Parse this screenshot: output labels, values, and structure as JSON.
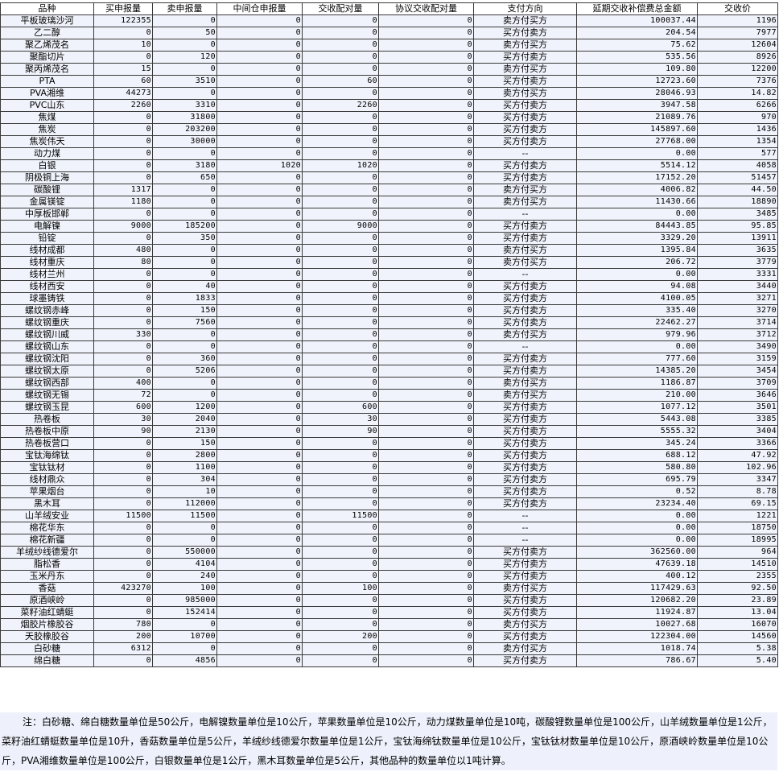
{
  "headers": [
    "品种",
    "买申报量",
    "卖申报量",
    "中间仓申报量",
    "交收配对量",
    "协议交收配对量",
    "支付方向",
    "延期交收补偿费总金额",
    "交收价"
  ],
  "rows": [
    [
      "平板玻璃沙河",
      "122355",
      "0",
      "0",
      "0",
      "0",
      "卖方付买方",
      "100037.44",
      "1196"
    ],
    [
      "乙二醇",
      "0",
      "50",
      "0",
      "0",
      "0",
      "买方付卖方",
      "204.54",
      "7977"
    ],
    [
      "聚乙烯茂名",
      "10",
      "0",
      "0",
      "0",
      "0",
      "卖方付买方",
      "75.62",
      "12604"
    ],
    [
      "聚酯切片",
      "0",
      "120",
      "0",
      "0",
      "0",
      "买方付卖方",
      "535.56",
      "8926"
    ],
    [
      "聚丙烯茂名",
      "15",
      "0",
      "0",
      "0",
      "0",
      "卖方付买方",
      "109.80",
      "12200"
    ],
    [
      "PTA",
      "60",
      "3510",
      "0",
      "60",
      "0",
      "买方付卖方",
      "12723.60",
      "7376"
    ],
    [
      "PVA湘维",
      "44273",
      "0",
      "0",
      "0",
      "0",
      "卖方付买方",
      "28046.93",
      "14.82"
    ],
    [
      "PVC山东",
      "2260",
      "3310",
      "0",
      "2260",
      "0",
      "买方付卖方",
      "3947.58",
      "6266"
    ],
    [
      "焦煤",
      "0",
      "31800",
      "0",
      "0",
      "0",
      "买方付卖方",
      "21089.76",
      "970"
    ],
    [
      "焦炭",
      "0",
      "203200",
      "0",
      "0",
      "0",
      "买方付卖方",
      "145897.60",
      "1436"
    ],
    [
      "焦炭伟天",
      "0",
      "30000",
      "0",
      "0",
      "0",
      "买方付卖方",
      "27768.00",
      "1354"
    ],
    [
      "动力煤",
      "0",
      "0",
      "0",
      "0",
      "0",
      "--",
      "0.00",
      "577"
    ],
    [
      "白银",
      "0",
      "3180",
      "1020",
      "1020",
      "0",
      "买方付卖方",
      "5514.12",
      "4058"
    ],
    [
      "阴极铜上海",
      "0",
      "650",
      "0",
      "0",
      "0",
      "买方付卖方",
      "17152.20",
      "51457"
    ],
    [
      "碳酸锂",
      "1317",
      "0",
      "0",
      "0",
      "0",
      "卖方付买方",
      "4006.82",
      "44.50"
    ],
    [
      "金属镁锭",
      "1180",
      "0",
      "0",
      "0",
      "0",
      "卖方付买方",
      "11430.66",
      "18890"
    ],
    [
      "中厚板邯郸",
      "0",
      "0",
      "0",
      "0",
      "0",
      "--",
      "0.00",
      "3485"
    ],
    [
      "电解镍",
      "9000",
      "185200",
      "0",
      "9000",
      "0",
      "买方付卖方",
      "84443.85",
      "95.85"
    ],
    [
      "铅锭",
      "0",
      "350",
      "0",
      "0",
      "0",
      "买方付卖方",
      "3329.20",
      "13911"
    ],
    [
      "线材成都",
      "480",
      "0",
      "0",
      "0",
      "0",
      "卖方付买方",
      "1395.84",
      "3635"
    ],
    [
      "线材重庆",
      "80",
      "0",
      "0",
      "0",
      "0",
      "卖方付买方",
      "206.72",
      "3779"
    ],
    [
      "线材兰州",
      "0",
      "0",
      "0",
      "0",
      "0",
      "--",
      "0.00",
      "3331"
    ],
    [
      "线材西安",
      "0",
      "40",
      "0",
      "0",
      "0",
      "买方付卖方",
      "94.08",
      "3440"
    ],
    [
      "球墨铸铁",
      "0",
      "1833",
      "0",
      "0",
      "0",
      "买方付卖方",
      "4100.05",
      "3271"
    ],
    [
      "螺纹钢赤峰",
      "0",
      "150",
      "0",
      "0",
      "0",
      "买方付卖方",
      "335.40",
      "3270"
    ],
    [
      "螺纹钢重庆",
      "0",
      "7560",
      "0",
      "0",
      "0",
      "买方付卖方",
      "22462.27",
      "3714"
    ],
    [
      "螺纹钢川威",
      "330",
      "0",
      "0",
      "0",
      "0",
      "卖方付买方",
      "979.96",
      "3712"
    ],
    [
      "螺纹钢山东",
      "0",
      "0",
      "0",
      "0",
      "0",
      "--",
      "0.00",
      "3490"
    ],
    [
      "螺纹钢沈阳",
      "0",
      "360",
      "0",
      "0",
      "0",
      "买方付卖方",
      "777.60",
      "3159"
    ],
    [
      "螺纹钢太原",
      "0",
      "5206",
      "0",
      "0",
      "0",
      "买方付卖方",
      "14385.20",
      "3454"
    ],
    [
      "螺纹钢西部",
      "400",
      "0",
      "0",
      "0",
      "0",
      "卖方付买方",
      "1186.87",
      "3709"
    ],
    [
      "螺纹钢无锡",
      "72",
      "0",
      "0",
      "0",
      "0",
      "卖方付买方",
      "210.00",
      "3646"
    ],
    [
      "螺纹钢玉昆",
      "600",
      "1200",
      "0",
      "600",
      "0",
      "买方付卖方",
      "1077.12",
      "3501"
    ],
    [
      "热卷板",
      "30",
      "2040",
      "0",
      "30",
      "0",
      "买方付卖方",
      "5443.08",
      "3385"
    ],
    [
      "热卷板中原",
      "90",
      "2130",
      "0",
      "90",
      "0",
      "买方付卖方",
      "5555.32",
      "3404"
    ],
    [
      "热卷板营口",
      "0",
      "150",
      "0",
      "0",
      "0",
      "买方付卖方",
      "345.24",
      "3366"
    ],
    [
      "宝钛海绵钛",
      "0",
      "2800",
      "0",
      "0",
      "0",
      "买方付卖方",
      "688.12",
      "47.92"
    ],
    [
      "宝钛钛材",
      "0",
      "1100",
      "0",
      "0",
      "0",
      "买方付卖方",
      "580.80",
      "102.96"
    ],
    [
      "线材鼎众",
      "0",
      "304",
      "0",
      "0",
      "0",
      "买方付卖方",
      "695.79",
      "3347"
    ],
    [
      "苹果烟台",
      "0",
      "10",
      "0",
      "0",
      "0",
      "买方付卖方",
      "0.52",
      "8.78"
    ],
    [
      "黑木耳",
      "0",
      "112000",
      "0",
      "0",
      "0",
      "买方付卖方",
      "23234.40",
      "69.15"
    ],
    [
      "山羊绒安业",
      "11500",
      "11500",
      "0",
      "11500",
      "0",
      "--",
      "0.00",
      "1221"
    ],
    [
      "棉花华东",
      "0",
      "0",
      "0",
      "0",
      "0",
      "--",
      "0.00",
      "18750"
    ],
    [
      "棉花新疆",
      "0",
      "0",
      "0",
      "0",
      "0",
      "--",
      "0.00",
      "18995"
    ],
    [
      "羊绒纱线德爱尔",
      "0",
      "550000",
      "0",
      "0",
      "0",
      "买方付卖方",
      "362560.00",
      "964"
    ],
    [
      "脂松香",
      "0",
      "4104",
      "0",
      "0",
      "0",
      "买方付卖方",
      "47639.18",
      "14510"
    ],
    [
      "玉米丹东",
      "0",
      "240",
      "0",
      "0",
      "0",
      "买方付卖方",
      "400.12",
      "2355"
    ],
    [
      "香菇",
      "423270",
      "100",
      "0",
      "100",
      "0",
      "卖方付买方",
      "117429.63",
      "92.50"
    ],
    [
      "原酒峡岭",
      "0",
      "985000",
      "0",
      "0",
      "0",
      "买方付卖方",
      "120682.20",
      "23.89"
    ],
    [
      "菜籽油红蜻蜓",
      "0",
      "152414",
      "0",
      "0",
      "0",
      "买方付卖方",
      "11924.87",
      "13.04"
    ],
    [
      "烟胶片橡胶谷",
      "780",
      "0",
      "0",
      "0",
      "0",
      "卖方付买方",
      "10027.68",
      "16070"
    ],
    [
      "天胶橡胶谷",
      "200",
      "10700",
      "0",
      "200",
      "0",
      "买方付卖方",
      "122304.00",
      "14560"
    ],
    [
      "白砂糖",
      "6312",
      "0",
      "0",
      "0",
      "0",
      "卖方付买方",
      "1018.74",
      "5.38"
    ],
    [
      "绵白糖",
      "0",
      "4856",
      "0",
      "0",
      "0",
      "买方付卖方",
      "786.67",
      "5.40"
    ]
  ],
  "note": "注：白砂糖、绵白糖数量单位是50公斤，电解镍数量单位是10公斤，苹果数量单位是10公斤，动力煤数量单位是10吨，碳酸锂数量单位是100公斤，山羊绒数量单位是1公斤，菜籽油红蜻蜓数量单位是10升，香菇数量单位是5公斤，羊绒纱线德爱尔数量单位是1公斤，宝钛海绵钛数量单位是10公斤，宝钛钛材数量单位是10公斤，原酒峡岭数量单位是10公斤，PVA湘维数量单位是100公斤，白银数量单位是1公斤，黑木耳数量单位是5公斤，其他品种的数量单位以1吨计算。"
}
